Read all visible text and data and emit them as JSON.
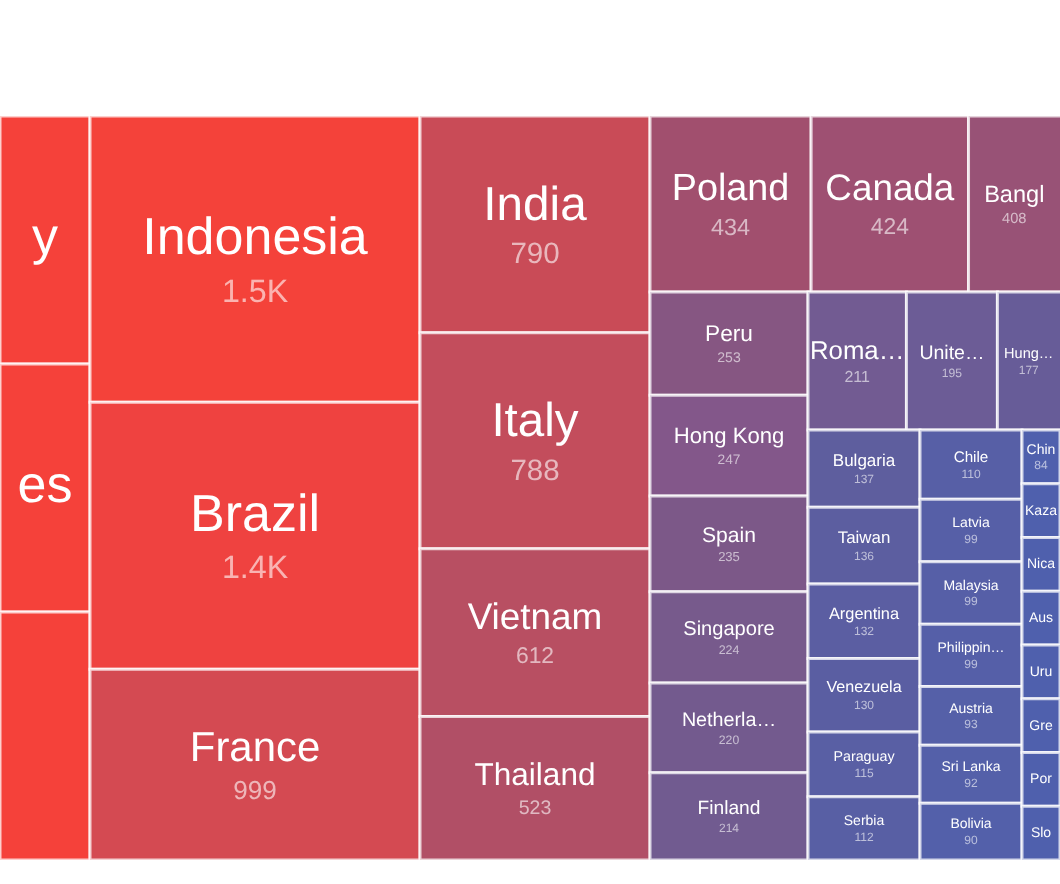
{
  "chart_data": {
    "type": "other",
    "categories": [
      "y",
      "es",
      null,
      "Indonesia",
      "Brazil",
      "France",
      "India",
      "Italy",
      "Vietnam",
      "Thailand",
      "Poland",
      "Canada",
      "Bangl",
      "Peru",
      "Hong Kong",
      "Spain",
      "Singapore",
      "Netherla…",
      "Finland",
      "Roma…",
      "Unite…",
      "Hung…",
      "Bulgaria",
      "Taiwan",
      "Argentina",
      "Venezuela",
      "Paraguay",
      "Serbia",
      "Chile",
      "Latvia",
      "Malaysia",
      "Philippin…",
      "Austria",
      "Sri Lanka",
      "Bolivia",
      "Chin",
      "Kaza",
      "Nica",
      "Aus",
      "Uru",
      "Gre",
      "Por",
      "Slo"
    ],
    "values": [
      null,
      null,
      null,
      1500,
      1400,
      999,
      790,
      788,
      612,
      523,
      434,
      424,
      408,
      253,
      247,
      235,
      224,
      220,
      214,
      211,
      195,
      177,
      137,
      136,
      132,
      130,
      115,
      112,
      110,
      99,
      99,
      99,
      93,
      92,
      90,
      84,
      null,
      null,
      null,
      null,
      null,
      null,
      null
    ],
    "value_labels": [
      null,
      null,
      null,
      "1.5K",
      "1.4K",
      "999",
      "790",
      "788",
      "612",
      "523",
      "434",
      "424",
      "408",
      "253",
      "247",
      "235",
      "224",
      "220",
      "214",
      "211",
      "195",
      "177",
      "137",
      "136",
      "132",
      "130",
      "115",
      "112",
      "110",
      "99",
      "99",
      "99",
      "93",
      "92",
      "90",
      "84",
      null,
      null,
      null,
      null,
      null,
      null,
      null
    ],
    "colors": [
      "#f5413a",
      "#f5413a",
      "#f5413a",
      "#f4423a",
      "#ef4240",
      "#d44a52",
      "#c94b57",
      "#c34d5c",
      "#b84f62",
      "#b14f66",
      "#a14f6e",
      "#9e5072",
      "#985276",
      "#865682",
      "#83578a",
      "#7c5888",
      "#775a8c",
      "#735a8e",
      "#715b90",
      "#725b92",
      "#6c5c96",
      "#675c98",
      "#5e5e9e",
      "#5c5ea0",
      "#5b5ea2",
      "#5a5ea2",
      "#595fa4",
      "#585fa4",
      "#575fa6",
      "#565fa7",
      "#565fa7",
      "#555fa8",
      "#5560a8",
      "#5460a9",
      "#5360aa",
      "#4f60ad",
      "#4f60ad",
      "#4f60ad",
      "#4f60ad",
      "#4f60ad",
      "#4f60ad",
      "#4f60ad",
      "#4f60ad"
    ]
  }
}
